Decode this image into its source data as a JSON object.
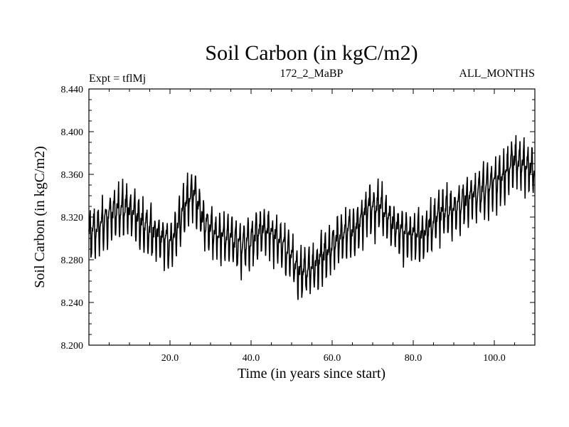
{
  "chart_data": {
    "type": "line",
    "title": "Soil Carbon (in kgC/m2)",
    "subtitle_left": "Expt = tflMj",
    "subtitle_center": "172_2_MaBP",
    "subtitle_right": "ALL_MONTHS",
    "xlabel": "Time (in years since start)",
    "ylabel": "Soil Carbon (in kgC/m2)",
    "xlim": [
      0,
      110
    ],
    "ylim": [
      8.2,
      8.44
    ],
    "xticks": [
      20,
      40,
      60,
      80,
      100
    ],
    "xtick_labels": [
      "20.0",
      "40.0",
      "60.0",
      "80.0",
      "100.0"
    ],
    "yticks": [
      8.2,
      8.24,
      8.28,
      8.32,
      8.36,
      8.4,
      8.44
    ],
    "ytick_labels": [
      "8.200",
      "8.240",
      "8.280",
      "8.320",
      "8.360",
      "8.400",
      "8.440"
    ],
    "series": [
      {
        "name": "Soil Carbon",
        "color": "#000000",
        "resolution": "monthly",
        "seasonal_cycle_amplitude_kgC_m2": 0.045,
        "annual_mean_envelope": {
          "x": [
            0,
            3,
            6,
            9,
            12,
            15,
            18,
            20,
            22,
            24,
            26,
            28,
            31,
            34,
            37,
            40,
            43,
            46,
            49,
            52,
            55,
            58,
            62,
            66,
            69,
            72,
            75,
            78,
            82,
            86,
            90,
            94,
            98,
            102,
            105,
            108,
            110
          ],
          "y": [
            8.3,
            8.31,
            8.32,
            8.327,
            8.315,
            8.305,
            8.298,
            8.29,
            8.31,
            8.33,
            8.34,
            8.315,
            8.3,
            8.3,
            8.29,
            8.295,
            8.305,
            8.298,
            8.285,
            8.265,
            8.268,
            8.28,
            8.3,
            8.305,
            8.325,
            8.325,
            8.31,
            8.3,
            8.3,
            8.318,
            8.325,
            8.335,
            8.342,
            8.355,
            8.37,
            8.365,
            8.36
          ]
        }
      }
    ]
  }
}
